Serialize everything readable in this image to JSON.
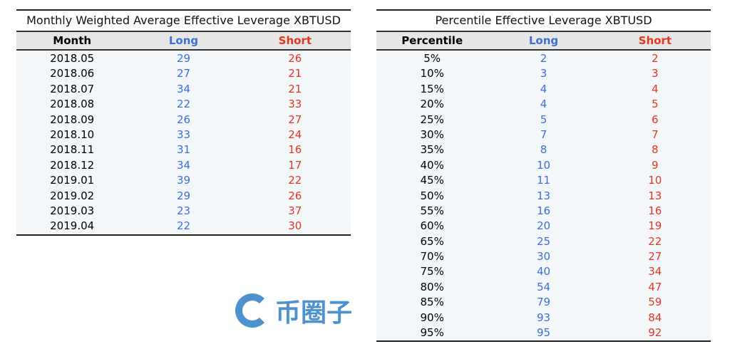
{
  "monthly": {
    "title": "Monthly Weighted Average Effective Leverage XBTUSD",
    "headers": [
      "Month",
      "Long",
      "Short"
    ],
    "rows": [
      [
        "2018.05",
        "29",
        "26"
      ],
      [
        "2018.06",
        "27",
        "21"
      ],
      [
        "2018.07",
        "34",
        "21"
      ],
      [
        "2018.08",
        "22",
        "33"
      ],
      [
        "2018.09",
        "26",
        "27"
      ],
      [
        "2018.10",
        "33",
        "24"
      ],
      [
        "2018.11",
        "31",
        "16"
      ],
      [
        "2018.12",
        "34",
        "17"
      ],
      [
        "2019.01",
        "39",
        "22"
      ],
      [
        "2019.02",
        "29",
        "26"
      ],
      [
        "2019.03",
        "23",
        "37"
      ],
      [
        "2019.04",
        "22",
        "30"
      ]
    ]
  },
  "percentile": {
    "title": "Percentile Effective Leverage XBTUSD",
    "headers": [
      "Percentile",
      "Long",
      "Short"
    ],
    "rows": [
      [
        "5%",
        "2",
        "2"
      ],
      [
        "10%",
        "3",
        "3"
      ],
      [
        "15%",
        "4",
        "4"
      ],
      [
        "20%",
        "4",
        "5"
      ],
      [
        "25%",
        "5",
        "6"
      ],
      [
        "30%",
        "7",
        "7"
      ],
      [
        "35%",
        "8",
        "8"
      ],
      [
        "40%",
        "10",
        "9"
      ],
      [
        "45%",
        "11",
        "10"
      ],
      [
        "50%",
        "13",
        "13"
      ],
      [
        "55%",
        "16",
        "16"
      ],
      [
        "60%",
        "20",
        "19"
      ],
      [
        "65%",
        "25",
        "22"
      ],
      [
        "70%",
        "30",
        "27"
      ],
      [
        "75%",
        "40",
        "34"
      ],
      [
        "80%",
        "54",
        "47"
      ],
      [
        "85%",
        "79",
        "59"
      ],
      [
        "90%",
        "93",
        "84"
      ],
      [
        "95%",
        "95",
        "92"
      ]
    ]
  },
  "watermark": {
    "text": "币圈子"
  },
  "colors": {
    "long": "#3b6fd6",
    "short": "#e2361f"
  }
}
